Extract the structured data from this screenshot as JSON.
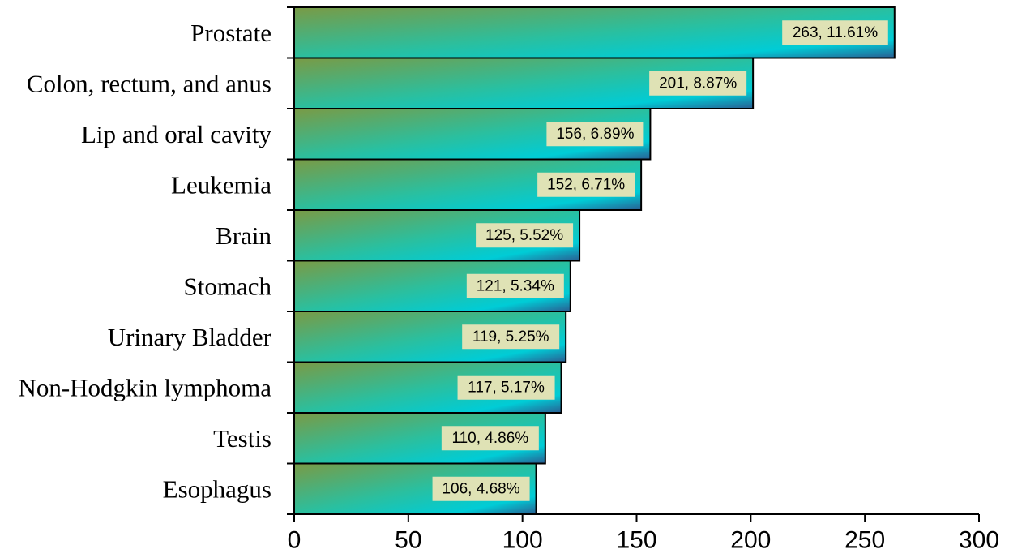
{
  "chart_data": {
    "type": "bar",
    "orientation": "horizontal",
    "categories": [
      "Prostate",
      "Colon, rectum, and anus",
      "Lip and oral cavity",
      "Leukemia",
      "Brain",
      "Stomach",
      "Urinary Bladder",
      "Non-Hodgkin lymphoma",
      "Testis",
      "Esophagus"
    ],
    "values": [
      263,
      201,
      156,
      152,
      125,
      121,
      119,
      117,
      110,
      106
    ],
    "data_labels": [
      "263, 11.61%",
      "201, 8.87%",
      "156, 6.89%",
      "152, 6.71%",
      "125, 5.52%",
      "121, 5.34%",
      "119, 5.25%",
      "117, 5.17%",
      "110, 4.86%",
      "106, 4.68%"
    ],
    "x_ticks": [
      "0",
      "50",
      "100",
      "150",
      "200",
      "250",
      "300"
    ],
    "xlim": [
      0,
      300
    ],
    "title": "",
    "xlabel": "",
    "ylabel": "",
    "grid": false,
    "legend": "none",
    "colors": {
      "gradient_start": "#7a9a45",
      "gradient_mid": "#2bbf9e",
      "gradient_peak": "#00ccd6",
      "gradient_end": "#2a5d92",
      "label_bg": "#dfe2b5",
      "bar_border": "#000000"
    }
  }
}
